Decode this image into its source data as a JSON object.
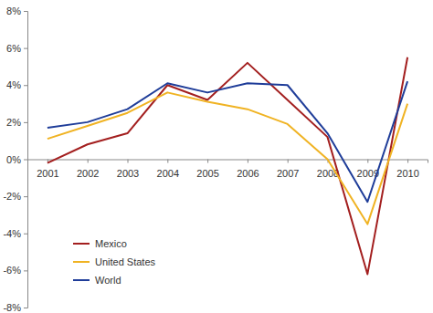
{
  "chart_data": {
    "type": "line",
    "categories": [
      "2001",
      "2002",
      "2003",
      "2004",
      "2005",
      "2006",
      "2007",
      "2008",
      "2009",
      "2010"
    ],
    "series": [
      {
        "name": "Mexico",
        "color": "#a31f1f",
        "values": [
          -0.2,
          0.8,
          1.4,
          4.0,
          3.2,
          5.2,
          3.2,
          1.2,
          -6.2,
          5.5
        ]
      },
      {
        "name": "United States",
        "color": "#f0b323",
        "values": [
          1.1,
          1.8,
          2.5,
          3.6,
          3.1,
          2.7,
          1.9,
          0.0,
          -3.5,
          3.0
        ]
      },
      {
        "name": "World",
        "color": "#1f3d99",
        "values": [
          1.7,
          2.0,
          2.7,
          4.1,
          3.6,
          4.1,
          4.0,
          1.4,
          -2.3,
          4.2
        ]
      }
    ],
    "ylim": [
      -8,
      8
    ],
    "yticks": [
      {
        "value": -8,
        "label": "-8%"
      },
      {
        "value": -6,
        "label": "-6%"
      },
      {
        "value": -4,
        "label": "-4%"
      },
      {
        "value": -2,
        "label": "-2%"
      },
      {
        "value": 0,
        "label": "0%"
      },
      {
        "value": 2,
        "label": "2%"
      },
      {
        "value": 4,
        "label": "4%"
      },
      {
        "value": 6,
        "label": "6%"
      },
      {
        "value": 8,
        "label": "8%"
      }
    ],
    "grid": false,
    "legend": "lower left"
  }
}
